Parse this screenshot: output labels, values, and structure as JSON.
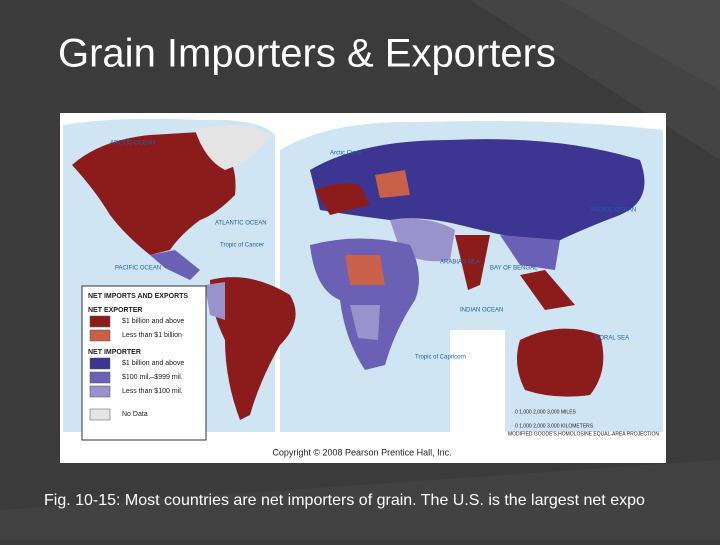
{
  "title": "Grain Importers & Exporters",
  "caption": "Fig. 10-15: Most countries are net importers of grain.  The U.S. is the largest net expo",
  "map": {
    "legend": {
      "title": "NET IMPORTS AND EXPORTS",
      "groups": [
        {
          "heading": "NET EXPORTER",
          "items": [
            {
              "label": "$1 billion and above",
              "color": "#8c1c1c"
            },
            {
              "label": "Less than $1 billion",
              "color": "#c8604a"
            }
          ]
        },
        {
          "heading": "NET IMPORTER",
          "items": [
            {
              "label": "$1 billion and above",
              "color": "#3d3592"
            },
            {
              "label": "$100 mil.–$999 mil.",
              "color": "#6a60b4"
            },
            {
              "label": "Less than $100 mil.",
              "color": "#9a92cc"
            }
          ]
        }
      ],
      "no_data": {
        "label": "No Data",
        "color": "#e4e4e4"
      }
    },
    "labels": [
      "ARCTIC OCEAN",
      "Arctic Circle",
      "ATLANTIC OCEAN",
      "PACIFIC OCEAN",
      "Tropic of Cancer",
      "PACIFIC OCEAN",
      "INDIAN OCEAN",
      "ARABIAN SEA",
      "BAY OF BENGAL",
      "Tropic of Capricorn",
      "CORAL SEA"
    ],
    "scale_miles": "0      1,000     2,000     3,000 MILES",
    "scale_km": "0    1,000   2,000   3,000 KILOMETERS",
    "projection": "MODIFIED GOODE'S HOMOLOSINE EQUAL-AREA PROJECTION",
    "copyright": "Copyright © 2008 Pearson Prentice Hall, Inc."
  }
}
